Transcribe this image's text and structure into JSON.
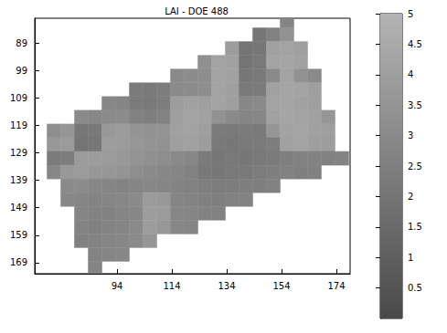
{
  "chart_data": {
    "type": "heatmap",
    "title": "LAI - DOE 488",
    "x": [
      66,
      71,
      76,
      81,
      86,
      91,
      96,
      101,
      106,
      111,
      116,
      121,
      126,
      131,
      136,
      141,
      146,
      151,
      156,
      161,
      166,
      171,
      176
    ],
    "y": [
      81,
      86,
      91,
      96,
      101,
      106,
      111,
      116,
      121,
      126,
      131,
      136,
      141,
      146,
      151,
      156,
      161,
      166,
      171
    ],
    "z": [
      [
        null,
        null,
        null,
        null,
        null,
        null,
        null,
        null,
        null,
        null,
        null,
        null,
        null,
        null,
        null,
        null,
        null,
        null,
        2.8,
        null,
        null,
        null,
        null
      ],
      [
        null,
        null,
        null,
        null,
        null,
        null,
        null,
        null,
        null,
        null,
        null,
        null,
        null,
        null,
        null,
        null,
        2.1,
        2.6,
        3.4,
        null,
        null,
        null,
        null
      ],
      [
        null,
        null,
        null,
        null,
        null,
        null,
        null,
        null,
        null,
        null,
        null,
        null,
        null,
        null,
        3.9,
        2.0,
        2.1,
        4.1,
        4.2,
        4.0,
        null,
        null,
        null
      ],
      [
        null,
        null,
        null,
        null,
        null,
        null,
        null,
        null,
        null,
        null,
        null,
        null,
        3.3,
        4.2,
        4.1,
        2.0,
        2.2,
        4.2,
        4.3,
        4.1,
        null,
        null,
        null
      ],
      [
        null,
        null,
        null,
        null,
        null,
        null,
        null,
        null,
        null,
        null,
        3.0,
        3.1,
        3.2,
        4.2,
        4.1,
        2.1,
        2.2,
        3.0,
        4.2,
        3.4,
        3.0,
        null,
        null
      ],
      [
        null,
        null,
        null,
        null,
        null,
        null,
        null,
        2.3,
        2.2,
        2.4,
        3.0,
        3.1,
        3.2,
        4.2,
        4.0,
        2.2,
        2.3,
        4.1,
        4.3,
        4.2,
        4.0,
        null,
        null
      ],
      [
        null,
        null,
        null,
        null,
        null,
        2.9,
        2.8,
        2.3,
        2.2,
        2.4,
        3.9,
        4.1,
        4.0,
        4.2,
        4.0,
        2.9,
        3.0,
        4.2,
        4.3,
        4.1,
        4.0,
        null,
        null
      ],
      [
        null,
        null,
        null,
        3.0,
        2.9,
        3.0,
        3.1,
        2.6,
        2.5,
        2.7,
        4.0,
        4.2,
        4.1,
        3.4,
        3.0,
        2.8,
        2.9,
        4.1,
        4.3,
        4.2,
        4.1,
        3.6,
        null
      ],
      [
        null,
        3.2,
        3.6,
        2.1,
        2.2,
        3.7,
        3.8,
        3.5,
        3.4,
        3.5,
        4.1,
        4.2,
        4.0,
        2.3,
        2.2,
        2.3,
        2.2,
        3.6,
        4.2,
        4.3,
        4.1,
        4.0,
        null
      ],
      [
        null,
        3.7,
        3.8,
        2.0,
        2.1,
        3.9,
        3.8,
        3.6,
        3.5,
        3.4,
        4.0,
        4.1,
        3.9,
        2.2,
        2.1,
        2.2,
        2.3,
        2.4,
        4.1,
        4.2,
        4.0,
        3.9,
        null
      ],
      [
        null,
        2.3,
        2.4,
        3.8,
        3.9,
        3.8,
        3.7,
        3.5,
        3.3,
        3.2,
        3.0,
        2.9,
        2.3,
        2.1,
        2.2,
        2.1,
        2.2,
        2.3,
        2.5,
        2.6,
        2.7,
        2.6,
        2.7
      ],
      [
        null,
        2.9,
        3.7,
        3.8,
        3.7,
        3.6,
        3.5,
        3.2,
        3.0,
        2.9,
        2.8,
        2.6,
        2.2,
        2.1,
        2.2,
        2.2,
        2.4,
        2.5,
        2.6,
        2.5,
        2.6,
        null,
        null
      ],
      [
        null,
        null,
        3.0,
        3.1,
        2.9,
        2.8,
        2.7,
        2.8,
        2.9,
        2.8,
        2.7,
        2.6,
        2.5,
        2.4,
        2.4,
        2.5,
        2.5,
        2.6,
        null,
        null,
        null,
        null,
        null
      ],
      [
        null,
        null,
        2.9,
        2.8,
        2.7,
        2.8,
        2.9,
        3.0,
        3.8,
        3.7,
        2.8,
        2.7,
        2.6,
        2.5,
        2.6,
        2.7,
        null,
        null,
        null,
        null,
        null,
        null,
        null
      ],
      [
        null,
        null,
        null,
        2.8,
        2.7,
        2.6,
        2.8,
        2.9,
        3.9,
        3.8,
        2.9,
        2.8,
        2.7,
        2.6,
        null,
        null,
        null,
        null,
        null,
        null,
        null,
        null,
        null
      ],
      [
        null,
        null,
        null,
        2.7,
        2.6,
        2.7,
        2.8,
        3.0,
        3.9,
        3.7,
        2.9,
        2.8,
        null,
        null,
        null,
        null,
        null,
        null,
        null,
        null,
        null,
        null,
        null
      ],
      [
        null,
        null,
        null,
        2.6,
        2.7,
        2.8,
        2.9,
        3.0,
        3.6,
        null,
        null,
        null,
        null,
        null,
        null,
        null,
        null,
        null,
        null,
        null,
        null,
        null,
        null
      ],
      [
        null,
        null,
        null,
        null,
        2.7,
        2.8,
        2.9,
        null,
        null,
        null,
        null,
        null,
        null,
        null,
        null,
        null,
        null,
        null,
        null,
        null,
        null,
        null,
        null
      ],
      [
        null,
        null,
        null,
        null,
        2.8,
        null,
        null,
        null,
        null,
        null,
        null,
        null,
        null,
        null,
        null,
        null,
        null,
        null,
        null,
        null,
        null,
        null,
        null
      ]
    ],
    "xlim": [
      64,
      179
    ],
    "ylim": [
      80,
      173
    ],
    "xticks": [
      94,
      114,
      134,
      154,
      174
    ],
    "yticks": [
      89,
      99,
      109,
      119,
      129,
      139,
      149,
      159,
      169
    ],
    "colorbar": {
      "range": [
        0,
        5
      ],
      "ticks": [
        0.5,
        1,
        1.5,
        2,
        2.5,
        3,
        3.5,
        4,
        4.5,
        5
      ]
    }
  }
}
